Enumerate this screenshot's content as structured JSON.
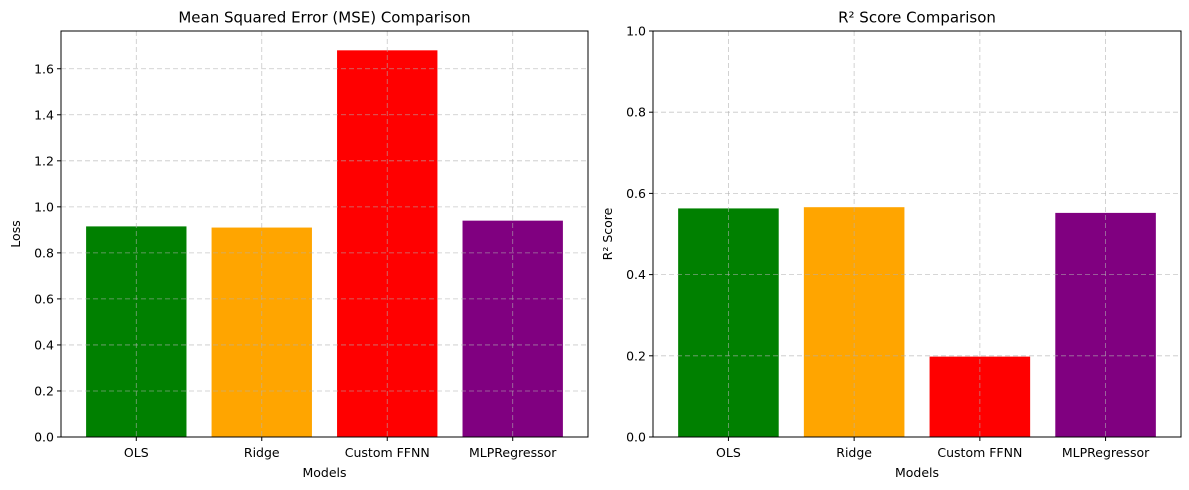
{
  "chart_data": [
    {
      "type": "bar",
      "title": "Mean Squared Error (MSE) Comparison",
      "xlabel": "Models",
      "ylabel": "Loss",
      "categories": [
        "OLS",
        "Ridge",
        "Custom FFNN",
        "MLPRegressor"
      ],
      "values": [
        0.915,
        0.91,
        1.68,
        0.94
      ],
      "colors": [
        "#008000",
        "#FFA500",
        "#FF0000",
        "#800080"
      ],
      "ylim": [
        0,
        1.764
      ],
      "yticks": [
        0.0,
        0.2,
        0.4,
        0.6,
        0.8,
        1.0,
        1.2,
        1.4,
        1.6
      ],
      "ytick_labels": [
        "0.0",
        "0.2",
        "0.4",
        "0.6",
        "0.8",
        "1.0",
        "1.2",
        "1.4",
        "1.6"
      ],
      "grid": true
    },
    {
      "type": "bar",
      "title": "R² Score Comparison",
      "xlabel": "Models",
      "ylabel": "R² Score",
      "categories": [
        "OLS",
        "Ridge",
        "Custom FFNN",
        "MLPRegressor"
      ],
      "values": [
        0.563,
        0.566,
        0.198,
        0.552
      ],
      "colors": [
        "#008000",
        "#FFA500",
        "#FF0000",
        "#800080"
      ],
      "ylim": [
        0,
        1.0
      ],
      "yticks": [
        0.0,
        0.2,
        0.4,
        0.6,
        0.8,
        1.0
      ],
      "ytick_labels": [
        "0.0",
        "0.2",
        "0.4",
        "0.6",
        "0.8",
        "1.0"
      ],
      "grid": true
    }
  ]
}
